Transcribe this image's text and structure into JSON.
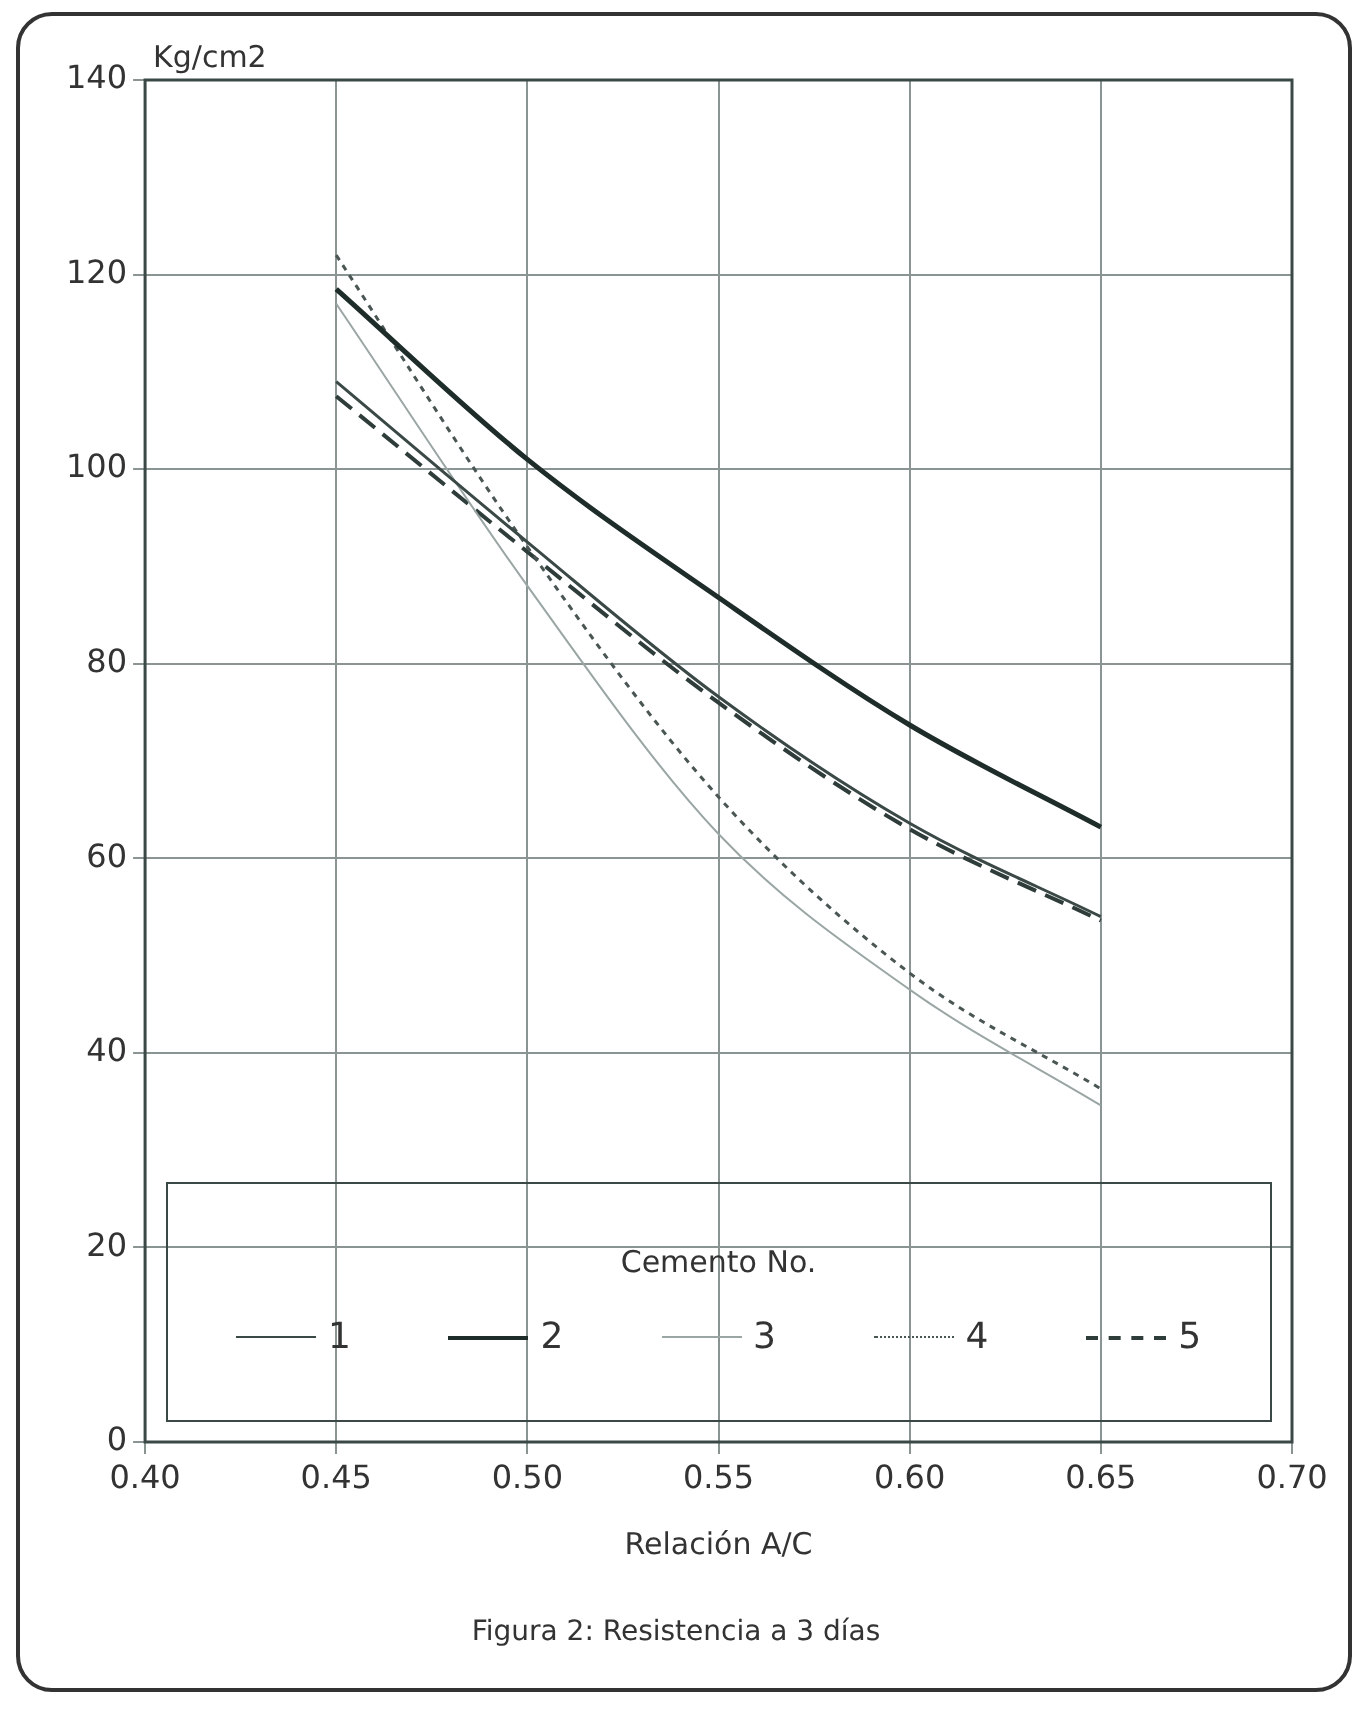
{
  "chart_data": {
    "type": "line",
    "title": "Figura 2: Resistencia a 3 días",
    "xlabel": "Relación A/C",
    "ylabel": "Kg/cm2",
    "legend_title": "Cemento No.",
    "legend": "bottom",
    "grid": true,
    "marker": "none",
    "x": [
      0.45,
      0.5,
      0.55,
      0.6,
      0.65
    ],
    "xlim": [
      0.4,
      0.7
    ],
    "xticks": [
      {
        "value": 0.4,
        "label": "0.40"
      },
      {
        "value": 0.45,
        "label": "0.45"
      },
      {
        "value": 0.5,
        "label": "0.50"
      },
      {
        "value": 0.55,
        "label": "0.55"
      },
      {
        "value": 0.6,
        "label": "0.60"
      },
      {
        "value": 0.65,
        "label": "0.65"
      },
      {
        "value": 0.7,
        "label": "0.70"
      }
    ],
    "ylim": [
      0,
      140
    ],
    "yticks": [
      0,
      20,
      40,
      60,
      80,
      100,
      120,
      140
    ],
    "series": [
      {
        "name": "1",
        "color": "#3a4846",
        "line_style": "solid",
        "values": [
          109,
          92.5,
          76.6,
          63.6,
          54
        ]
      },
      {
        "name": "2",
        "color": "#1e2c2a",
        "line_style": "solid",
        "values": [
          118.5,
          101,
          86.8,
          73.7,
          63.2
        ]
      },
      {
        "name": "3",
        "color": "#9aa6a4",
        "line_style": "solid",
        "values": [
          117,
          88,
          62.5,
          46.5,
          34.6
        ]
      },
      {
        "name": "4",
        "color": "#4a5654",
        "line_style": "dotted",
        "values": [
          122,
          92,
          66.3,
          48.2,
          36.3
        ]
      },
      {
        "name": "5",
        "color": "#2e3c3a",
        "line_style": "dashed",
        "values": [
          107.5,
          91.5,
          76,
          63,
          53.6
        ]
      }
    ]
  }
}
